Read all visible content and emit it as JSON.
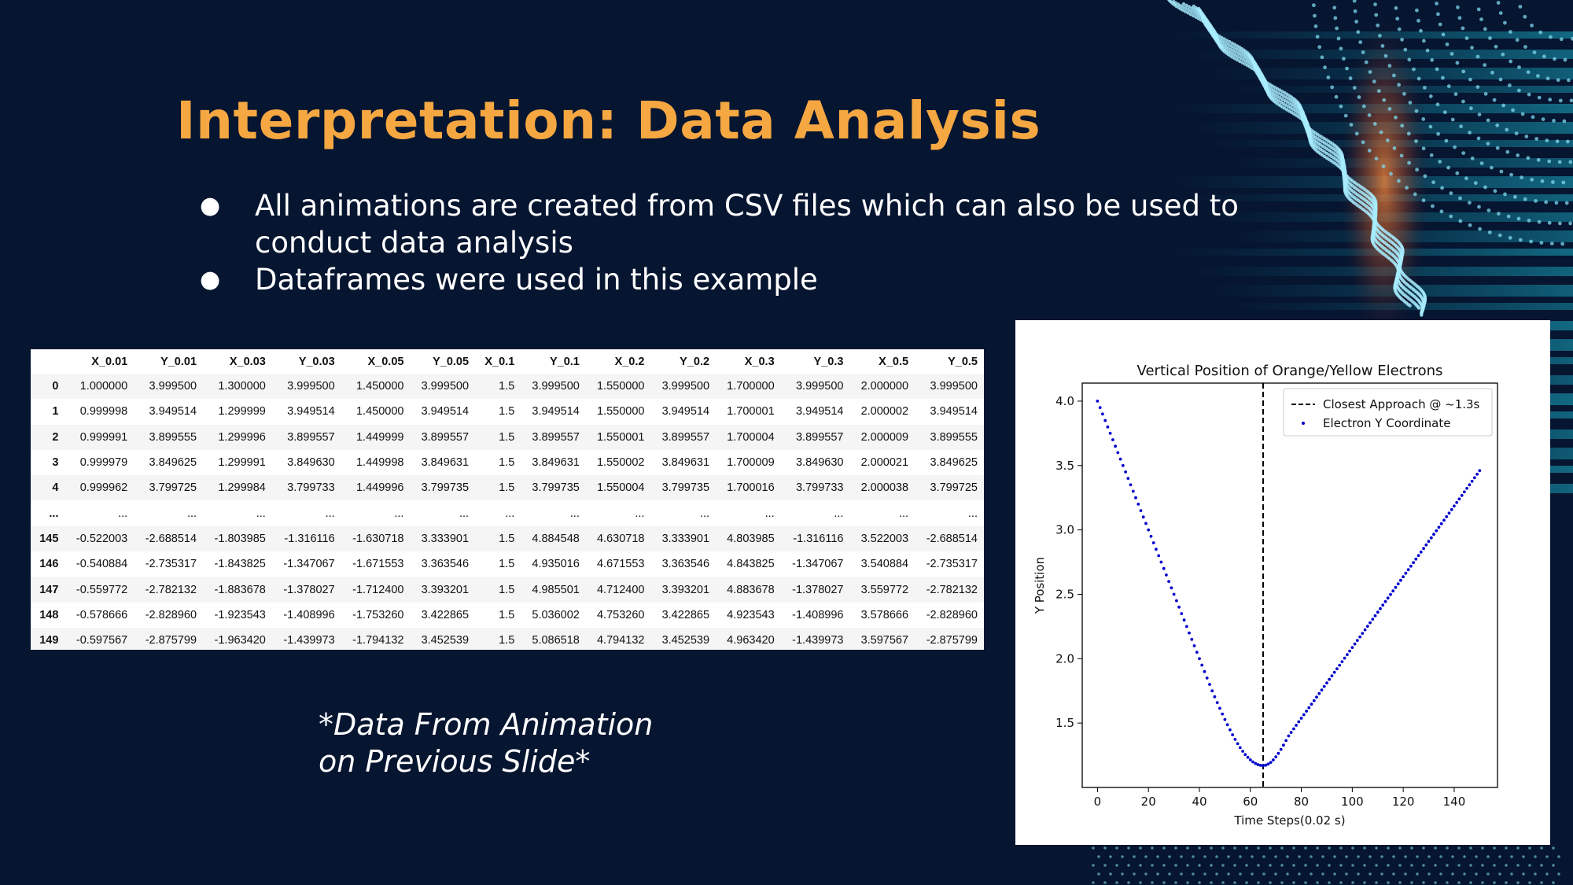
{
  "slide": {
    "title": "Interpretation: Data Analysis",
    "bullets": [
      "All animations are created from CSV files which can also be used to conduct data analysis",
      "Dataframes were used in this example"
    ],
    "note_line1": "*Data From Animation",
    "note_line2": "on Previous Slide*",
    "bullet_symbol": "●"
  },
  "dataframe": {
    "columns": [
      "",
      "X_0.01",
      "Y_0.01",
      "X_0.03",
      "Y_0.03",
      "X_0.05",
      "Y_0.05",
      "X_0.1",
      "Y_0.1",
      "X_0.2",
      "Y_0.2",
      "X_0.3",
      "Y_0.3",
      "X_0.5",
      "Y_0.5"
    ],
    "rows": [
      [
        "0",
        "1.000000",
        "3.999500",
        "1.300000",
        "3.999500",
        "1.450000",
        "3.999500",
        "1.5",
        "3.999500",
        "1.550000",
        "3.999500",
        "1.700000",
        "3.999500",
        "2.000000",
        "3.999500"
      ],
      [
        "1",
        "0.999998",
        "3.949514",
        "1.299999",
        "3.949514",
        "1.450000",
        "3.949514",
        "1.5",
        "3.949514",
        "1.550000",
        "3.949514",
        "1.700001",
        "3.949514",
        "2.000002",
        "3.949514"
      ],
      [
        "2",
        "0.999991",
        "3.899555",
        "1.299996",
        "3.899557",
        "1.449999",
        "3.899557",
        "1.5",
        "3.899557",
        "1.550001",
        "3.899557",
        "1.700004",
        "3.899557",
        "2.000009",
        "3.899555"
      ],
      [
        "3",
        "0.999979",
        "3.849625",
        "1.299991",
        "3.849630",
        "1.449998",
        "3.849631",
        "1.5",
        "3.849631",
        "1.550002",
        "3.849631",
        "1.700009",
        "3.849630",
        "2.000021",
        "3.849625"
      ],
      [
        "4",
        "0.999962",
        "3.799725",
        "1.299984",
        "3.799733",
        "1.449996",
        "3.799735",
        "1.5",
        "3.799735",
        "1.550004",
        "3.799735",
        "1.700016",
        "3.799733",
        "2.000038",
        "3.799725"
      ],
      [
        "...",
        "...",
        "...",
        "...",
        "...",
        "...",
        "...",
        "...",
        "...",
        "...",
        "...",
        "...",
        "...",
        "...",
        "..."
      ],
      [
        "145",
        "-0.522003",
        "-2.688514",
        "-1.803985",
        "-1.316116",
        "-1.630718",
        "3.333901",
        "1.5",
        "4.884548",
        "4.630718",
        "3.333901",
        "4.803985",
        "-1.316116",
        "3.522003",
        "-2.688514"
      ],
      [
        "146",
        "-0.540884",
        "-2.735317",
        "-1.843825",
        "-1.347067",
        "-1.671553",
        "3.363546",
        "1.5",
        "4.935016",
        "4.671553",
        "3.363546",
        "4.843825",
        "-1.347067",
        "3.540884",
        "-2.735317"
      ],
      [
        "147",
        "-0.559772",
        "-2.782132",
        "-1.883678",
        "-1.378027",
        "-1.712400",
        "3.393201",
        "1.5",
        "4.985501",
        "4.712400",
        "3.393201",
        "4.883678",
        "-1.378027",
        "3.559772",
        "-2.782132"
      ],
      [
        "148",
        "-0.578666",
        "-2.828960",
        "-1.923543",
        "-1.408996",
        "-1.753260",
        "3.422865",
        "1.5",
        "5.036002",
        "4.753260",
        "3.422865",
        "4.923543",
        "-1.408996",
        "3.578666",
        "-2.828960"
      ],
      [
        "149",
        "-0.597567",
        "-2.875799",
        "-1.963420",
        "-1.439973",
        "-1.794132",
        "3.452539",
        "1.5",
        "5.086518",
        "4.794132",
        "3.452539",
        "4.963420",
        "-1.439973",
        "3.597567",
        "-2.875799"
      ]
    ]
  },
  "chart_data": {
    "type": "scatter",
    "title": "Vertical Position of Orange/Yellow Electrons",
    "xlabel": "Time Steps(0.02 s)",
    "ylabel": "Y Position",
    "xlim": [
      -6,
      157
    ],
    "ylim": [
      1.0,
      4.14
    ],
    "xticks": [
      0,
      20,
      40,
      60,
      80,
      100,
      120,
      140
    ],
    "yticks": [
      1.5,
      2.0,
      2.5,
      3.0,
      3.5,
      4.0
    ],
    "grid": false,
    "legend_position": "top-right",
    "series": [
      {
        "name": "Electron Y Coordinate",
        "color": "#0000cc",
        "marker": "dot",
        "x_start": 0,
        "x_end": 150,
        "segments": [
          {
            "x_from": 0,
            "x_to": 45,
            "y_from": 4.0,
            "y_to": 1.75
          },
          {
            "x_from": 45,
            "x_to": 65,
            "y_from": 1.75,
            "y_to": 1.17,
            "curve": true
          },
          {
            "x_from": 65,
            "x_to": 75,
            "y_from": 1.17,
            "y_to": 1.4,
            "curve": true
          },
          {
            "x_from": 75,
            "x_to": 150,
            "y_from": 1.4,
            "y_to": 3.46
          }
        ]
      }
    ],
    "vline": {
      "name": "Closest Approach @ ~1.3s",
      "x": 65,
      "color": "#000000",
      "style": "dashed"
    }
  }
}
